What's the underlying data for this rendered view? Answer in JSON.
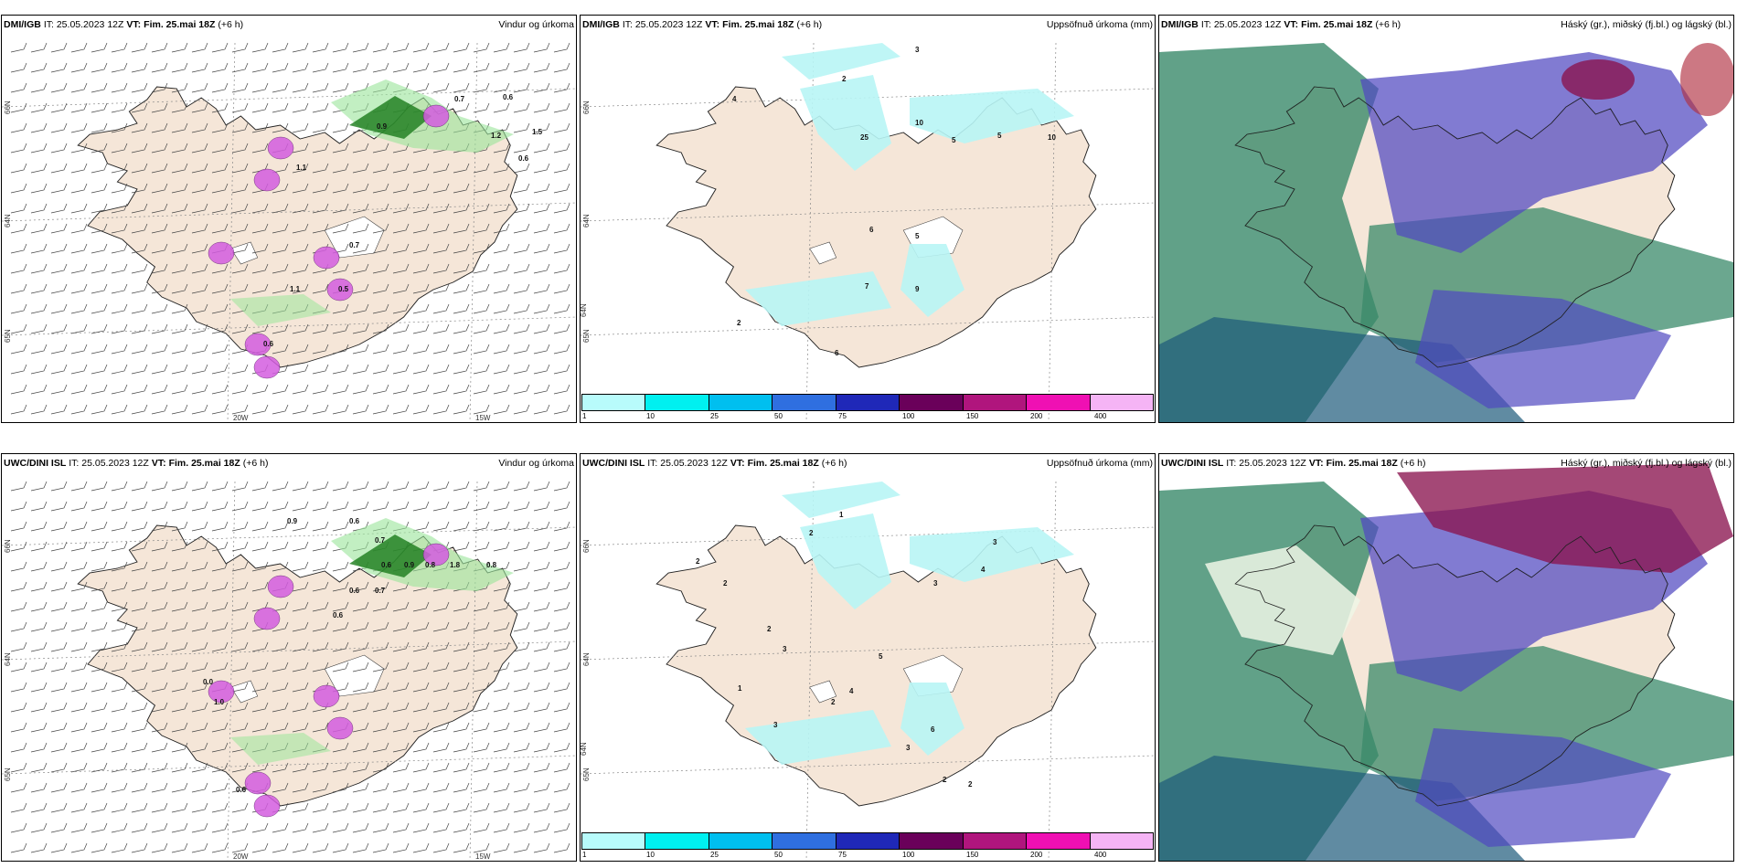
{
  "rows": [
    {
      "model": "DMI/IGB",
      "panels": [
        {
          "kind": "wind",
          "model": "DMI/IGB",
          "it": "IT: 25.05.2023 12Z",
          "vt_label": "VT:",
          "vt": "Fim. 25.mai 18Z",
          "offset": "(+6 h)",
          "title": "Vindur og úrkoma",
          "values": [
            "0.7",
            "0.6",
            "0.9",
            "1.2",
            "1.5",
            "0.6",
            "1.1",
            "1.1",
            "0.5",
            "0.7",
            "0.6"
          ]
        },
        {
          "kind": "precip",
          "model": "DMI/IGB",
          "it": "IT: 25.05.2023 12Z",
          "vt_label": "VT:",
          "vt": "Fim. 25.mai 18Z",
          "offset": "(+6 h)",
          "title": "Uppsöfnuð úrkoma (mm)",
          "values": [
            "3",
            "2",
            "4",
            "25",
            "10",
            "5",
            "5",
            "10",
            "6",
            "5",
            "7",
            "9",
            "2",
            "6"
          ]
        },
        {
          "kind": "cloud",
          "model": "DMI/IGB",
          "it": "IT: 25.05.2023 12Z",
          "vt_label": "VT:",
          "vt": "Fim. 25.mai 18Z",
          "offset": "(+6 h)",
          "title": "Háský (gr.), miðský (fj.bl.) og lágský (bl.)",
          "values": []
        }
      ]
    },
    {
      "model": "UWC/DINI ISL",
      "panels": [
        {
          "kind": "wind",
          "model": "UWC/DINI ISL",
          "it": "IT: 25.05.2023 12Z",
          "vt_label": "VT:",
          "vt": "Fim. 25.mai 18Z",
          "offset": "(+6 h)",
          "title": "Vindur og úrkoma",
          "values": [
            "0.9",
            "0.6",
            "0.7",
            "0.6",
            "0.9",
            "0.8",
            "1.8",
            "0.8",
            "0.7",
            "0.6",
            "0.6",
            "0.0",
            "1.0",
            "0.6"
          ]
        },
        {
          "kind": "precip",
          "model": "UWC/DINI ISL",
          "it": "IT: 25.05.2023 12Z",
          "vt_label": "VT:",
          "vt": "Fim. 25.mai 18Z",
          "offset": "(+6 h)",
          "title": "Uppsöfnuð úrkoma (mm)",
          "values": [
            "1",
            "2",
            "2",
            "3",
            "4",
            "3",
            "2",
            "2",
            "3",
            "4",
            "5",
            "2",
            "1",
            "3",
            "3",
            "6",
            "2",
            "2"
          ]
        },
        {
          "kind": "cloud",
          "model": "UWC/DINI ISL",
          "it": "IT: 25.05.2023 12Z",
          "vt_label": "VT:",
          "vt": "Fim. 25.mai 18Z",
          "offset": "(+6 h)",
          "title": "Háský (gr.), miðský (fj.bl.) og lágský (bl.)",
          "values": []
        }
      ]
    }
  ],
  "axes": {
    "lon_labels": [
      "20W",
      "15W"
    ],
    "lat_labels": [
      "66N",
      "64N",
      "65N"
    ]
  },
  "precip_scale": {
    "labels": [
      "1",
      "10",
      "25",
      "50",
      "75",
      "100",
      "150",
      "200",
      "400"
    ],
    "colors": [
      "#b8fbfb",
      "#00f0f0",
      "#00bfef",
      "#2f6fe0",
      "#1f28b8",
      "#6a005a",
      "#b0157d",
      "#ef10b3",
      "#f5b4f5"
    ]
  },
  "colors": {
    "land": "#f5e6d8",
    "precip_light": "#b8f5f5",
    "wind_precip": "#9ae59a",
    "wind_precip_dark": "#1a7a1a",
    "convective": "#d45de0",
    "cloud_high": "#3a8a6a",
    "cloud_mid": "#5048c0",
    "cloud_low": "#8a1550"
  }
}
